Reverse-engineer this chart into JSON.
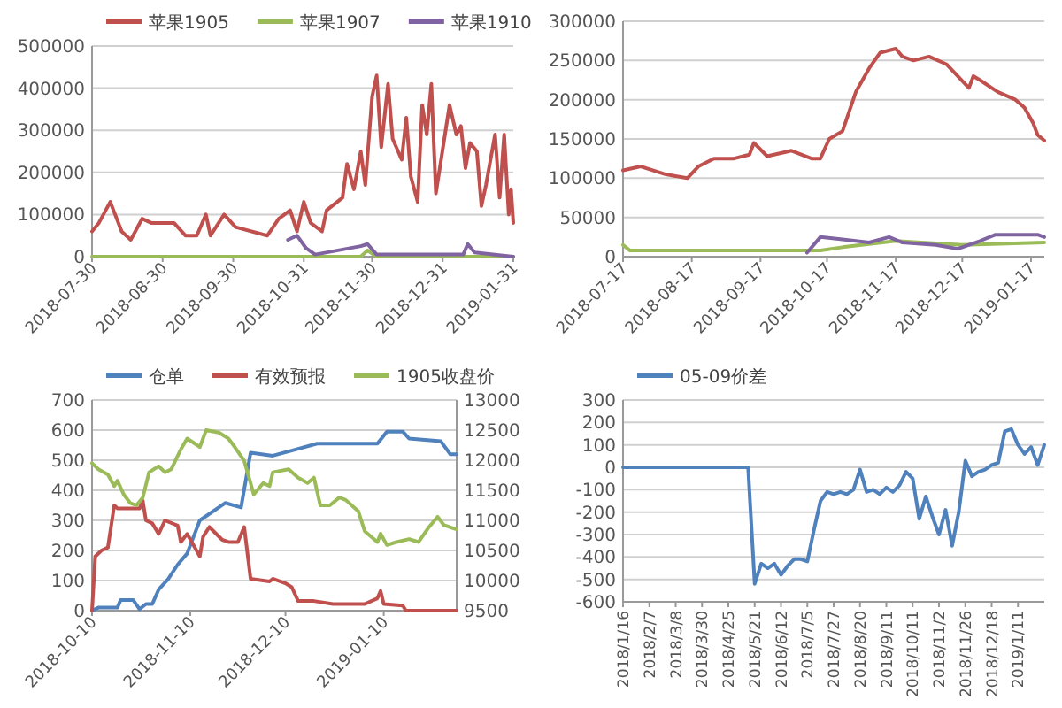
{
  "chart_data": [
    {
      "type": "line",
      "legend": "top",
      "grid": "y",
      "xlim": [
        "2018-07-30",
        "2019-01-31"
      ],
      "ylim": [
        0,
        500000
      ],
      "yticks": [
        0,
        100000,
        200000,
        300000,
        400000,
        500000
      ],
      "xticks": [
        {
          "value": "2018-07-30",
          "label": "2018-07-30"
        },
        {
          "value": "2018-08-30",
          "label": "2018-08-30"
        },
        {
          "value": "2018-09-30",
          "label": "2018-09-30"
        },
        {
          "value": "2018-10-31",
          "label": "2018-10-31"
        },
        {
          "value": "2018-11-30",
          "label": "2018-11-30"
        },
        {
          "value": "2018-12-31",
          "label": "2018-12-31"
        },
        {
          "value": "2019-01-31",
          "label": "2019-01-31"
        }
      ],
      "series": [
        {
          "name": "苹果1905",
          "color": "#c0504d",
          "x": [
            "2018-07-30",
            "2018-08-02",
            "2018-08-07",
            "2018-08-12",
            "2018-08-16",
            "2018-08-21",
            "2018-08-25",
            "2018-08-30",
            "2018-09-04",
            "2018-09-09",
            "2018-09-14",
            "2018-09-18",
            "2018-09-20",
            "2018-09-26",
            "2018-10-01",
            "2018-10-15",
            "2018-10-20",
            "2018-10-25",
            "2018-10-28",
            "2018-10-31",
            "2018-11-03",
            "2018-11-08",
            "2018-11-10",
            "2018-11-17",
            "2018-11-19",
            "2018-11-22",
            "2018-11-25",
            "2018-11-27",
            "2018-11-30",
            "2018-12-02",
            "2018-12-04",
            "2018-12-07",
            "2018-12-09",
            "2018-12-13",
            "2018-12-15",
            "2018-12-17",
            "2018-12-20",
            "2018-12-22",
            "2018-12-24",
            "2018-12-26",
            "2018-12-28",
            "2019-01-03",
            "2019-01-06",
            "2019-01-08",
            "2019-01-10",
            "2019-01-12",
            "2019-01-15",
            "2019-01-17",
            "2019-01-19",
            "2019-01-23",
            "2019-01-25",
            "2019-01-27",
            "2019-01-29",
            "2019-01-30",
            "2019-01-31"
          ],
          "values": [
            60000,
            80000,
            130000,
            60000,
            40000,
            90000,
            80000,
            80000,
            80000,
            50000,
            50000,
            100000,
            50000,
            100000,
            70000,
            50000,
            90000,
            110000,
            60000,
            130000,
            80000,
            60000,
            110000,
            140000,
            220000,
            160000,
            250000,
            170000,
            380000,
            430000,
            260000,
            410000,
            280000,
            230000,
            330000,
            190000,
            130000,
            360000,
            290000,
            410000,
            150000,
            360000,
            290000,
            310000,
            210000,
            270000,
            250000,
            120000,
            170000,
            290000,
            140000,
            290000,
            100000,
            160000,
            80000
          ]
        },
        {
          "name": "苹果1907",
          "color": "#9bbb59",
          "x": [
            "2018-07-30",
            "2018-11-25",
            "2018-11-28",
            "2018-12-02",
            "2019-01-31"
          ],
          "values": [
            0,
            0,
            15000,
            0,
            0
          ]
        },
        {
          "name": "苹果1910",
          "color": "#8064a2",
          "x": [
            "2018-10-24",
            "2018-10-28",
            "2018-11-01",
            "2018-11-05",
            "2018-11-25",
            "2018-11-28",
            "2018-12-02",
            "2019-01-09",
            "2019-01-11",
            "2019-01-14",
            "2019-01-31"
          ],
          "values": [
            40000,
            50000,
            20000,
            5000,
            25000,
            30000,
            5000,
            5000,
            30000,
            10000,
            0
          ]
        }
      ]
    },
    {
      "type": "line",
      "grid": "y",
      "xlim": [
        "2018-07-17",
        "2019-01-23"
      ],
      "ylim": [
        0,
        300000
      ],
      "yticks": [
        0,
        50000,
        100000,
        150000,
        200000,
        250000,
        300000
      ],
      "xticks": [
        {
          "value": "2018-07-17",
          "label": "2018-07-17"
        },
        {
          "value": "2018-08-17",
          "label": "2018-08-17"
        },
        {
          "value": "2018-09-17",
          "label": "2018-09-17"
        },
        {
          "value": "2018-10-17",
          "label": "2018-10-17"
        },
        {
          "value": "2018-11-17",
          "label": "2018-11-17"
        },
        {
          "value": "2018-12-17",
          "label": "2018-12-17"
        },
        {
          "value": "2019-01-17",
          "label": "2019-01-17"
        }
      ],
      "series": [
        {
          "color": "#c0504d",
          "x": [
            "2018-07-17",
            "2018-07-25",
            "2018-08-05",
            "2018-08-15",
            "2018-08-20",
            "2018-08-27",
            "2018-09-05",
            "2018-09-12",
            "2018-09-14",
            "2018-09-20",
            "2018-10-01",
            "2018-10-10",
            "2018-10-14",
            "2018-10-18",
            "2018-10-24",
            "2018-10-30",
            "2018-11-05",
            "2018-11-10",
            "2018-11-17",
            "2018-11-20",
            "2018-11-25",
            "2018-12-02",
            "2018-12-10",
            "2018-12-15",
            "2018-12-20",
            "2018-12-22",
            "2018-12-25",
            "2019-01-02",
            "2019-01-10",
            "2019-01-14",
            "2019-01-18",
            "2019-01-20",
            "2019-01-23"
          ],
          "values": [
            110000,
            115000,
            105000,
            100000,
            115000,
            125000,
            125000,
            130000,
            145000,
            128000,
            135000,
            125000,
            125000,
            150000,
            160000,
            210000,
            240000,
            260000,
            265000,
            255000,
            250000,
            255000,
            245000,
            230000,
            215000,
            230000,
            225000,
            210000,
            200000,
            190000,
            170000,
            155000,
            148000
          ]
        },
        {
          "color": "#9bbb59",
          "x": [
            "2018-07-17",
            "2018-07-20",
            "2018-10-14",
            "2018-10-24",
            "2018-11-17",
            "2018-12-17",
            "2019-01-23"
          ],
          "values": [
            15000,
            8000,
            8000,
            12000,
            20000,
            15000,
            18000
          ]
        },
        {
          "color": "#8064a2",
          "x": [
            "2018-10-08",
            "2018-10-14",
            "2018-10-24",
            "2018-11-05",
            "2018-11-14",
            "2018-11-20",
            "2018-12-05",
            "2018-12-15",
            "2018-12-25",
            "2019-01-01",
            "2019-01-20",
            "2019-01-23"
          ],
          "values": [
            5000,
            25000,
            22000,
            18000,
            25000,
            18000,
            15000,
            10000,
            20000,
            28000,
            28000,
            25000
          ]
        }
      ]
    },
    {
      "type": "line",
      "legend": "top",
      "grid": "y",
      "xlim": [
        "2018-10-10",
        "2019-02-02"
      ],
      "ylim": [
        0,
        700
      ],
      "yticks": [
        0,
        100,
        200,
        300,
        400,
        500,
        600,
        700
      ],
      "y2lim": [
        9500,
        13000
      ],
      "y2ticks": [
        9500,
        10000,
        10500,
        11000,
        11500,
        12000,
        12500,
        13000
      ],
      "xticks": [
        {
          "value": "2018-10-10",
          "label": "2018-10-10"
        },
        {
          "value": "2018-11-10",
          "label": "2018-11-10"
        },
        {
          "value": "2018-12-10",
          "label": "2018-12-10"
        },
        {
          "value": "2019-01-10",
          "label": "2019-01-10"
        }
      ],
      "series": [
        {
          "name": "仓单",
          "color": "#4f81bd",
          "x": [
            "2018-10-10",
            "2018-10-12",
            "2018-10-18",
            "2018-10-19",
            "2018-10-23",
            "2018-10-25",
            "2018-10-27",
            "2018-10-29",
            "2018-10-31",
            "2018-11-03",
            "2018-11-06",
            "2018-11-09",
            "2018-11-13",
            "2018-11-21",
            "2018-11-26",
            "2018-11-29",
            "2018-12-06",
            "2018-12-13",
            "2018-12-20",
            "2019-01-08",
            "2019-01-11",
            "2019-01-16",
            "2019-01-18",
            "2019-01-28",
            "2019-01-31",
            "2019-02-02"
          ],
          "values": [
            0,
            10,
            10,
            35,
            35,
            5,
            22,
            22,
            70,
            105,
            153,
            190,
            300,
            358,
            343,
            525,
            515,
            535,
            555,
            555,
            595,
            595,
            572,
            563,
            520,
            520
          ]
        },
        {
          "name": "有效预报",
          "color": "#c0504d",
          "x": [
            "2018-10-10",
            "2018-10-11",
            "2018-10-13",
            "2018-10-15",
            "2018-10-17",
            "2018-10-18",
            "2018-10-25",
            "2018-10-26",
            "2018-10-27",
            "2018-10-29",
            "2018-10-31",
            "2018-11-02",
            "2018-11-06",
            "2018-11-07",
            "2018-11-09",
            "2018-11-13",
            "2018-11-14",
            "2018-11-16",
            "2018-11-20",
            "2018-11-22",
            "2018-11-25",
            "2018-11-27",
            "2018-11-29",
            "2018-12-05",
            "2018-12-06",
            "2018-12-10",
            "2018-12-12",
            "2018-12-14",
            "2018-12-19",
            "2018-12-25",
            "2019-01-04",
            "2019-01-08",
            "2019-01-09",
            "2019-01-10",
            "2019-01-16",
            "2019-01-17",
            "2019-02-02"
          ],
          "values": [
            0,
            180,
            200,
            210,
            350,
            340,
            340,
            365,
            300,
            290,
            255,
            300,
            283,
            228,
            255,
            180,
            245,
            278,
            236,
            228,
            228,
            278,
            106,
            97,
            106,
            91,
            78,
            32,
            32,
            22,
            22,
            41,
            65,
            22,
            17,
            0,
            0
          ]
        },
        {
          "name": "1905收盘价",
          "axis": "y2",
          "color": "#9bbb59",
          "x": [
            "2018-10-10",
            "2018-10-12",
            "2018-10-15",
            "2018-10-17",
            "2018-10-18",
            "2018-10-20",
            "2018-10-22",
            "2018-10-24",
            "2018-10-26",
            "2018-10-28",
            "2018-10-31",
            "2018-11-02",
            "2018-11-04",
            "2018-11-07",
            "2018-11-09",
            "2018-11-13",
            "2018-11-15",
            "2018-11-19",
            "2018-11-22",
            "2018-11-24",
            "2018-11-27",
            "2018-11-29",
            "2018-11-30",
            "2018-12-03",
            "2018-12-05",
            "2018-12-06",
            "2018-12-11",
            "2018-12-14",
            "2018-12-17",
            "2018-12-19",
            "2018-12-21",
            "2018-12-24",
            "2018-12-27",
            "2018-12-29",
            "2019-01-02",
            "2019-01-04",
            "2019-01-08",
            "2019-01-09",
            "2019-01-11",
            "2019-01-14",
            "2019-01-18",
            "2019-01-21",
            "2019-01-24",
            "2019-01-27",
            "2019-01-29",
            "2019-02-02"
          ],
          "values": [
            11950,
            11850,
            11760,
            11570,
            11660,
            11430,
            11290,
            11250,
            11380,
            11800,
            11900,
            11800,
            11850,
            12180,
            12360,
            12220,
            12500,
            12460,
            12360,
            12220,
            11990,
            11620,
            11430,
            11620,
            11570,
            11800,
            11850,
            11710,
            11620,
            11710,
            11250,
            11250,
            11380,
            11340,
            11150,
            10820,
            10640,
            10780,
            10590,
            10640,
            10690,
            10640,
            10870,
            11060,
            10920,
            10850
          ]
        }
      ]
    },
    {
      "type": "line",
      "legend": "top",
      "grid": "y",
      "ylim": [
        -600,
        300
      ],
      "yticks": [
        -600,
        -500,
        -400,
        -300,
        -200,
        -100,
        0,
        100,
        200,
        300
      ],
      "categories": [
        "2018/1/16",
        null,
        null,
        null,
        "2018/2/7",
        null,
        null,
        null,
        "2018/3/8",
        null,
        null,
        null,
        "2018/3/30",
        null,
        null,
        null,
        "2018/4/25",
        null,
        null,
        null,
        "2018/5/21",
        null,
        null,
        null,
        "2018/6/12",
        null,
        null,
        null,
        "2018/7/5",
        null,
        null,
        null,
        "2018/7/27",
        null,
        null,
        null,
        "2018/8/20",
        null,
        null,
        null,
        "2018/9/11",
        null,
        null,
        null,
        "2018/10/11",
        null,
        null,
        null,
        "2018/11/2",
        null,
        null,
        null,
        "2018/11/26",
        null,
        null,
        null,
        "2018/12/18",
        null,
        null,
        null,
        "2019/1/11",
        null,
        null,
        null,
        null
      ],
      "series": [
        {
          "name": "05-09价差",
          "color": "#4f81bd",
          "values": [
            0,
            0,
            0,
            0,
            0,
            0,
            0,
            0,
            0,
            0,
            0,
            0,
            0,
            0,
            0,
            0,
            0,
            0,
            0,
            0,
            -520,
            -430,
            -450,
            -430,
            -480,
            -440,
            -410,
            -410,
            -420,
            -280,
            -150,
            -110,
            -120,
            -110,
            -120,
            -100,
            -10,
            -110,
            -100,
            -120,
            -90,
            -110,
            -80,
            -20,
            -50,
            -230,
            -130,
            -220,
            -300,
            -190,
            -350,
            -200,
            30,
            -40,
            -20,
            -10,
            10,
            20,
            160,
            170,
            100,
            60,
            90,
            10,
            100
          ]
        }
      ]
    }
  ]
}
